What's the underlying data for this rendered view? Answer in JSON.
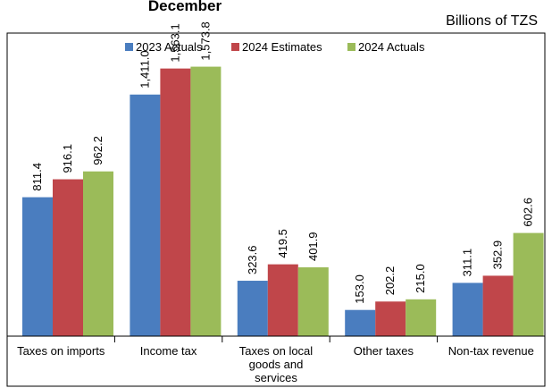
{
  "chart_data": {
    "type": "bar",
    "title": "December",
    "unit_label": "Billions of TZS",
    "xlabel": "",
    "ylabel": "",
    "ylim": [
      0,
      1770
    ],
    "grid": false,
    "legend_position": "top-center",
    "categories": [
      [
        "Taxes on imports"
      ],
      [
        "Income tax"
      ],
      [
        "Taxes on local",
        "goods and",
        "services"
      ],
      [
        "Other taxes"
      ],
      [
        "Non-tax revenue"
      ]
    ],
    "series": [
      {
        "name": "2023 Actuals",
        "color": "#4a7dbf",
        "values": [
          811.4,
          1411.0,
          323.6,
          153.0,
          311.1
        ],
        "labels": [
          "811.4",
          "1,411.0",
          "323.6",
          "153.0",
          "311.1"
        ]
      },
      {
        "name": "2024 Estimates",
        "color": "#c0464a",
        "values": [
          916.1,
          1563.1,
          419.5,
          202.2,
          352.9
        ],
        "labels": [
          "916.1",
          "1,563.1",
          "419.5",
          "202.2",
          "352.9"
        ]
      },
      {
        "name": "2024 Actuals",
        "color": "#9bbb59",
        "values": [
          962.2,
          1573.8,
          401.9,
          215.0,
          602.6
        ],
        "labels": [
          "962.2",
          "1,573.8",
          "401.9",
          "215.0",
          "602.6"
        ]
      }
    ]
  }
}
